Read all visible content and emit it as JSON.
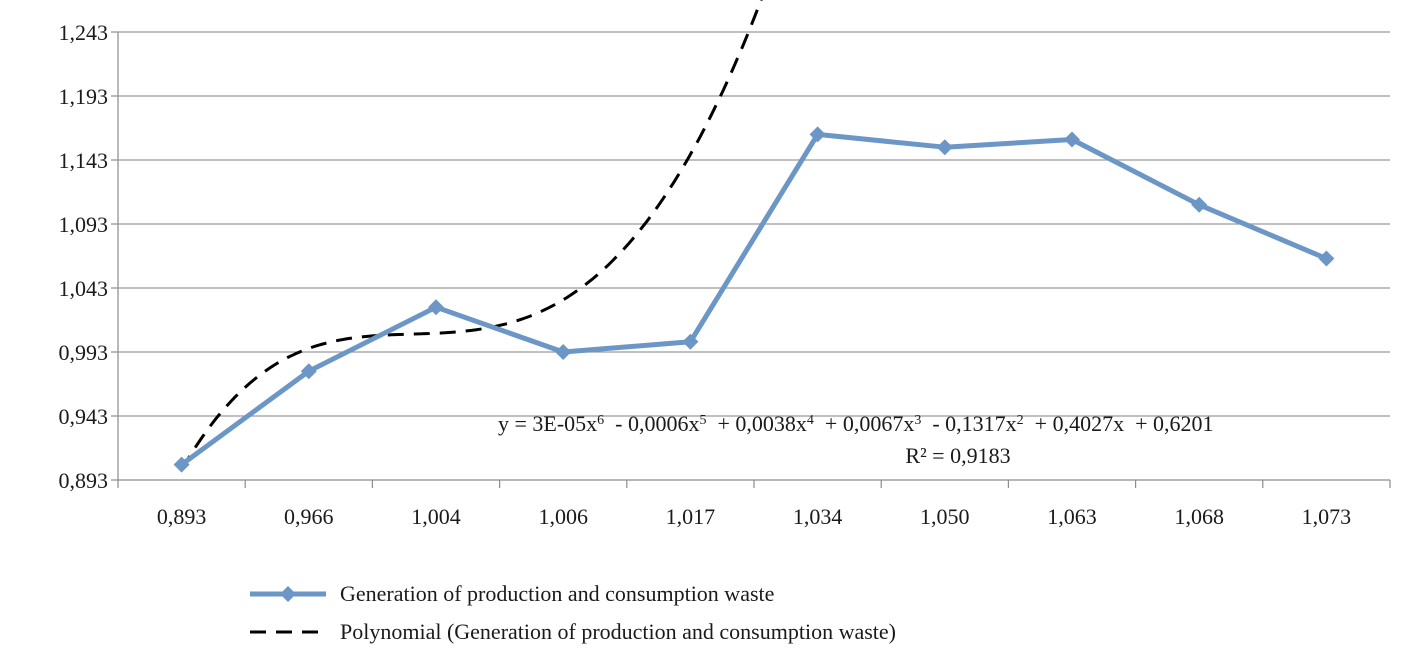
{
  "chart_data": {
    "type": "line",
    "title": "",
    "xlabel": "",
    "ylabel": "",
    "categories": [
      "0,893",
      "0,966",
      "1,004",
      "1,006",
      "1,017",
      "1,034",
      "1,050",
      "1,063",
      "1,068",
      "1,073"
    ],
    "y_ticks": [
      "0,893",
      "0,943",
      "0,993",
      "1,043",
      "1,093",
      "1,143",
      "1,193",
      "1,243"
    ],
    "ylim": [
      0.893,
      1.243
    ],
    "grid": "horizontal",
    "legend_position": "bottom",
    "series": [
      {
        "name": "Generation of production and consumption waste",
        "color": "#6b96c6",
        "marker": "diamond",
        "values": [
          0.905,
          0.978,
          1.028,
          0.993,
          1.001,
          1.163,
          1.153,
          1.159,
          1.108,
          1.066
        ]
      }
    ],
    "trendline": {
      "name": "Polynomial (Generation of production and consumption waste)",
      "style": "dashed",
      "color": "#000000",
      "equation": {
        "y": "y = 3E-05x",
        "e6": "6",
        "t2": "  - 0,0006x",
        "e5": "5",
        "t3": "  + 0,0038x",
        "e4": "4",
        "t4": "  + 0,0067x",
        "e3": "3",
        "t5": "  - 0,1317x",
        "e2": "2",
        "t6": "  + 0,4027x  + 0,6201"
      },
      "r2": "R² = 0,9183"
    }
  }
}
